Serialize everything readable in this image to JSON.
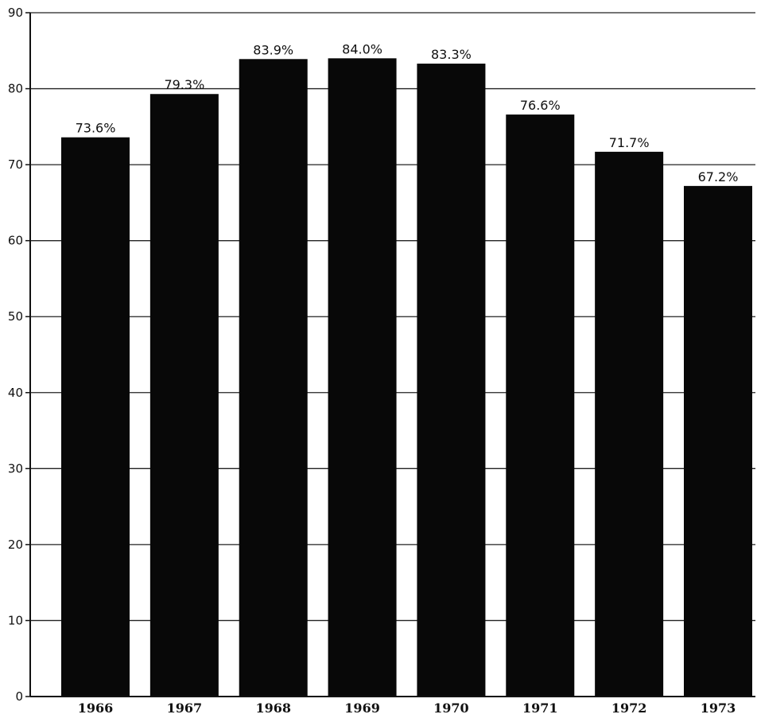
{
  "chart_data": {
    "type": "bar",
    "title": "",
    "xlabel": "",
    "ylabel": "",
    "categories": [
      "1966",
      "1967",
      "1968",
      "1969",
      "1970",
      "1971",
      "1972",
      "1973"
    ],
    "values": [
      73.6,
      79.3,
      83.9,
      84.0,
      83.3,
      76.6,
      71.7,
      67.2
    ],
    "data_labels": [
      "73.6%",
      "79.3%",
      "83.9%",
      "84.0%",
      "83.3%",
      "76.6%",
      "71.7%",
      "67.2%"
    ],
    "ylim": [
      0,
      90
    ],
    "yticks": [
      0,
      10,
      20,
      30,
      40,
      50,
      60,
      70,
      80,
      90
    ],
    "grid": true,
    "bar_color": "#080808",
    "grid_color": "#222222"
  }
}
